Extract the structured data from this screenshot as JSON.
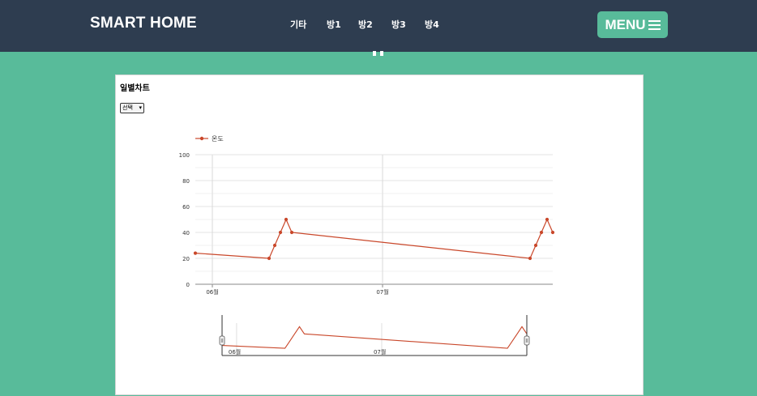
{
  "header": {
    "brand": "SMART HOME",
    "nav": [
      "기타",
      "방1",
      "방2",
      "방3",
      "방4"
    ],
    "menu_label": "MENU"
  },
  "panel": {
    "title": "일별차트",
    "select_value": "선택"
  },
  "colors": {
    "navbar": "#2e3d50",
    "background": "#58bb9a",
    "series": "#c9472a"
  },
  "chart_data": {
    "type": "line",
    "legend": [
      "온도"
    ],
    "legend_position": "top-left",
    "grid": true,
    "ylim": [
      0,
      100
    ],
    "yticks": [
      "100",
      "80",
      "60",
      "40",
      "20",
      "0"
    ],
    "xticks": [
      "06월",
      "07월"
    ],
    "series": [
      {
        "name": "온도",
        "points": [
          {
            "x": "05-29",
            "y": 24
          },
          {
            "x": "06-11",
            "y": 20
          },
          {
            "x": "06-12",
            "y": 30
          },
          {
            "x": "06-13",
            "y": 40
          },
          {
            "x": "06-14",
            "y": 50
          },
          {
            "x": "06-15",
            "y": 40
          },
          {
            "x": "07-27",
            "y": 20
          },
          {
            "x": "07-28",
            "y": 30
          },
          {
            "x": "07-29",
            "y": 40
          },
          {
            "x": "07-30",
            "y": 50
          },
          {
            "x": "07-31",
            "y": 40
          }
        ]
      }
    ],
    "navigator": {
      "xticks": [
        "06월",
        "07월"
      ]
    }
  }
}
